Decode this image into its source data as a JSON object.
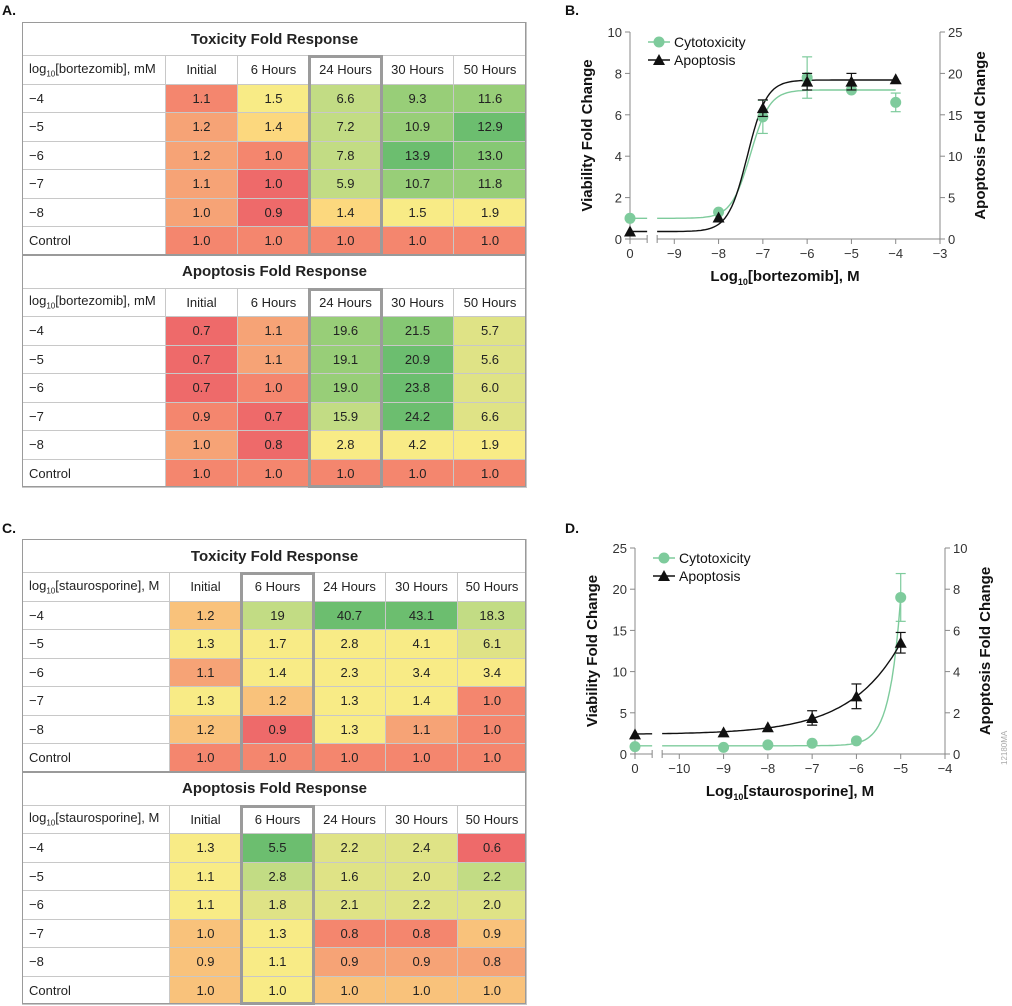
{
  "cell_colors": {
    "R": "#ee6a6a",
    "S": "#f4866e",
    "O": "#f6a376",
    "L": "#f9c27b",
    "YO": "#fcd87e",
    "Y": "#f8eb86",
    "YG": "#dfe386",
    "LG": "#c2dc84",
    "G": "#98ce78",
    "MG": "#86c874",
    "DG": "#6cbe6f"
  },
  "panel_a": {
    "label": "A.",
    "highlight_column": "24 Hours",
    "tables": [
      {
        "title": "Toxicity Fold Response",
        "header": {
          "prefix": "log",
          "sub": "10",
          "rest": "[bortezomib], mM",
          "columns": [
            "Initial",
            "6 Hours",
            "24 Hours",
            "30 Hours",
            "50 Hours"
          ]
        },
        "rows": [
          {
            "label": "−4",
            "cells": [
              {
                "v": "1.1",
                "c": "S"
              },
              {
                "v": "1.5",
                "c": "Y"
              },
              {
                "v": "6.6",
                "c": "LG"
              },
              {
                "v": "9.3",
                "c": "G"
              },
              {
                "v": "11.6",
                "c": "G"
              }
            ]
          },
          {
            "label": "−5",
            "cells": [
              {
                "v": "1.2",
                "c": "O"
              },
              {
                "v": "1.4",
                "c": "YO"
              },
              {
                "v": "7.2",
                "c": "LG"
              },
              {
                "v": "10.9",
                "c": "G"
              },
              {
                "v": "12.9",
                "c": "DG"
              }
            ]
          },
          {
            "label": "−6",
            "cells": [
              {
                "v": "1.2",
                "c": "O"
              },
              {
                "v": "1.0",
                "c": "S"
              },
              {
                "v": "7.8",
                "c": "LG"
              },
              {
                "v": "13.9",
                "c": "DG"
              },
              {
                "v": "13.0",
                "c": "MG"
              }
            ]
          },
          {
            "label": "−7",
            "cells": [
              {
                "v": "1.1",
                "c": "O"
              },
              {
                "v": "1.0",
                "c": "R"
              },
              {
                "v": "5.9",
                "c": "LG"
              },
              {
                "v": "10.7",
                "c": "G"
              },
              {
                "v": "11.8",
                "c": "G"
              }
            ]
          },
          {
            "label": "−8",
            "cells": [
              {
                "v": "1.0",
                "c": "O"
              },
              {
                "v": "0.9",
                "c": "R"
              },
              {
                "v": "1.4",
                "c": "YO"
              },
              {
                "v": "1.5",
                "c": "Y"
              },
              {
                "v": "1.9",
                "c": "Y"
              }
            ]
          },
          {
            "label": "Control",
            "cells": [
              {
                "v": "1.0",
                "c": "S"
              },
              {
                "v": "1.0",
                "c": "S"
              },
              {
                "v": "1.0",
                "c": "S"
              },
              {
                "v": "1.0",
                "c": "S"
              },
              {
                "v": "1.0",
                "c": "S"
              }
            ]
          }
        ]
      },
      {
        "title": "Apoptosis Fold Response",
        "header": {
          "prefix": "log",
          "sub": "10",
          "rest": "[bortezomib], mM",
          "columns": [
            "Initial",
            "6 Hours",
            "24 Hours",
            "30 Hours",
            "50 Hours"
          ]
        },
        "rows": [
          {
            "label": "−4",
            "cells": [
              {
                "v": "0.7",
                "c": "R"
              },
              {
                "v": "1.1",
                "c": "O"
              },
              {
                "v": "19.6",
                "c": "G"
              },
              {
                "v": "21.5",
                "c": "MG"
              },
              {
                "v": "5.7",
                "c": "YG"
              }
            ]
          },
          {
            "label": "−5",
            "cells": [
              {
                "v": "0.7",
                "c": "R"
              },
              {
                "v": "1.1",
                "c": "O"
              },
              {
                "v": "19.1",
                "c": "G"
              },
              {
                "v": "20.9",
                "c": "DG"
              },
              {
                "v": "5.6",
                "c": "YG"
              }
            ]
          },
          {
            "label": "−6",
            "cells": [
              {
                "v": "0.7",
                "c": "R"
              },
              {
                "v": "1.0",
                "c": "S"
              },
              {
                "v": "19.0",
                "c": "G"
              },
              {
                "v": "23.8",
                "c": "DG"
              },
              {
                "v": "6.0",
                "c": "YG"
              }
            ]
          },
          {
            "label": "−7",
            "cells": [
              {
                "v": "0.9",
                "c": "S"
              },
              {
                "v": "0.7",
                "c": "R"
              },
              {
                "v": "15.9",
                "c": "LG"
              },
              {
                "v": "24.2",
                "c": "DG"
              },
              {
                "v": "6.6",
                "c": "YG"
              }
            ]
          },
          {
            "label": "−8",
            "cells": [
              {
                "v": "1.0",
                "c": "O"
              },
              {
                "v": "0.8",
                "c": "R"
              },
              {
                "v": "2.8",
                "c": "Y"
              },
              {
                "v": "4.2",
                "c": "Y"
              },
              {
                "v": "1.9",
                "c": "Y"
              }
            ]
          },
          {
            "label": "Control",
            "cells": [
              {
                "v": "1.0",
                "c": "S"
              },
              {
                "v": "1.0",
                "c": "S"
              },
              {
                "v": "1.0",
                "c": "S"
              },
              {
                "v": "1.0",
                "c": "S"
              },
              {
                "v": "1.0",
                "c": "S"
              }
            ]
          }
        ]
      }
    ]
  },
  "panel_c": {
    "label": "C.",
    "highlight_column": "6 Hours",
    "tables": [
      {
        "title": "Toxicity Fold Response",
        "header": {
          "prefix": "log",
          "sub": "10",
          "rest": "[staurosporine], M",
          "columns": [
            "Initial",
            "6 Hours",
            "24 Hours",
            "30 Hours",
            "50 Hours"
          ]
        },
        "rows": [
          {
            "label": "−4",
            "cells": [
              {
                "v": "1.2",
                "c": "L"
              },
              {
                "v": "19",
                "c": "LG"
              },
              {
                "v": "40.7",
                "c": "DG"
              },
              {
                "v": "43.1",
                "c": "DG"
              },
              {
                "v": "18.3",
                "c": "LG"
              }
            ]
          },
          {
            "label": "−5",
            "cells": [
              {
                "v": "1.3",
                "c": "Y"
              },
              {
                "v": "1.7",
                "c": "Y"
              },
              {
                "v": "2.8",
                "c": "Y"
              },
              {
                "v": "4.1",
                "c": "Y"
              },
              {
                "v": "6.1",
                "c": "YG"
              }
            ]
          },
          {
            "label": "−6",
            "cells": [
              {
                "v": "1.1",
                "c": "O"
              },
              {
                "v": "1.4",
                "c": "Y"
              },
              {
                "v": "2.3",
                "c": "Y"
              },
              {
                "v": "3.4",
                "c": "Y"
              },
              {
                "v": "3.4",
                "c": "Y"
              }
            ]
          },
          {
            "label": "−7",
            "cells": [
              {
                "v": "1.3",
                "c": "Y"
              },
              {
                "v": "1.2",
                "c": "L"
              },
              {
                "v": "1.3",
                "c": "Y"
              },
              {
                "v": "1.4",
                "c": "Y"
              },
              {
                "v": "1.0",
                "c": "S"
              }
            ]
          },
          {
            "label": "−8",
            "cells": [
              {
                "v": "1.2",
                "c": "L"
              },
              {
                "v": "0.9",
                "c": "R"
              },
              {
                "v": "1.3",
                "c": "Y"
              },
              {
                "v": "1.1",
                "c": "O"
              },
              {
                "v": "1.0",
                "c": "S"
              }
            ]
          },
          {
            "label": "Control",
            "cells": [
              {
                "v": "1.0",
                "c": "S"
              },
              {
                "v": "1.0",
                "c": "S"
              },
              {
                "v": "1.0",
                "c": "S"
              },
              {
                "v": "1.0",
                "c": "S"
              },
              {
                "v": "1.0",
                "c": "S"
              }
            ]
          }
        ]
      },
      {
        "title": "Apoptosis Fold Response",
        "header": {
          "prefix": "log",
          "sub": "10",
          "rest": "[staurosporine], M",
          "columns": [
            "Initial",
            "6 Hours",
            "24 Hours",
            "30 Hours",
            "50 Hours"
          ]
        },
        "rows": [
          {
            "label": "−4",
            "cells": [
              {
                "v": "1.3",
                "c": "Y"
              },
              {
                "v": "5.5",
                "c": "DG"
              },
              {
                "v": "2.2",
                "c": "YG"
              },
              {
                "v": "2.4",
                "c": "YG"
              },
              {
                "v": "0.6",
                "c": "R"
              }
            ]
          },
          {
            "label": "−5",
            "cells": [
              {
                "v": "1.1",
                "c": "Y"
              },
              {
                "v": "2.8",
                "c": "LG"
              },
              {
                "v": "1.6",
                "c": "YG"
              },
              {
                "v": "2.0",
                "c": "YG"
              },
              {
                "v": "2.2",
                "c": "LG"
              }
            ]
          },
          {
            "label": "−6",
            "cells": [
              {
                "v": "1.1",
                "c": "Y"
              },
              {
                "v": "1.8",
                "c": "YG"
              },
              {
                "v": "2.1",
                "c": "YG"
              },
              {
                "v": "2.2",
                "c": "YG"
              },
              {
                "v": "2.0",
                "c": "YG"
              }
            ]
          },
          {
            "label": "−7",
            "cells": [
              {
                "v": "1.0",
                "c": "L"
              },
              {
                "v": "1.3",
                "c": "Y"
              },
              {
                "v": "0.8",
                "c": "S"
              },
              {
                "v": "0.8",
                "c": "S"
              },
              {
                "v": "0.9",
                "c": "L"
              }
            ]
          },
          {
            "label": "−8",
            "cells": [
              {
                "v": "0.9",
                "c": "L"
              },
              {
                "v": "1.1",
                "c": "Y"
              },
              {
                "v": "0.9",
                "c": "O"
              },
              {
                "v": "0.9",
                "c": "O"
              },
              {
                "v": "0.8",
                "c": "O"
              }
            ]
          },
          {
            "label": "Control",
            "cells": [
              {
                "v": "1.0",
                "c": "L"
              },
              {
                "v": "1.0",
                "c": "Y"
              },
              {
                "v": "1.0",
                "c": "L"
              },
              {
                "v": "1.0",
                "c": "L"
              },
              {
                "v": "1.0",
                "c": "L"
              }
            ]
          }
        ]
      }
    ]
  },
  "chart_data": [
    {
      "panel_label": "B.",
      "type": "line",
      "xlabel_prefix": "Log",
      "xlabel_sub": "10",
      "xlabel_rest": "[bortezomib], M",
      "ylabel": "Viability Fold Change",
      "y2label": "Apoptosis Fold Change",
      "x_ticks": [
        "0",
        "−9",
        "−8",
        "−7",
        "−6",
        "−5",
        "−4",
        "−3"
      ],
      "x_tick_values": [
        0,
        -9,
        -8,
        -7,
        -6,
        -5,
        -4,
        -3
      ],
      "x_axis_break": true,
      "ylim": [
        0,
        10
      ],
      "y_ticks": [
        "0",
        "2",
        "4",
        "6",
        "8",
        "10"
      ],
      "y2lim": [
        0,
        25
      ],
      "y2_ticks": [
        "0",
        "5",
        "10",
        "15",
        "20",
        "25"
      ],
      "legend_placement": "top-left",
      "series": [
        {
          "name": "Cytotoxicity",
          "axis": "left",
          "marker": "circle",
          "color": "#7ecb9c",
          "x": [
            0,
            -8,
            -7,
            -6,
            -5,
            -4
          ],
          "y": [
            1.0,
            1.3,
            5.9,
            7.8,
            7.2,
            6.6
          ],
          "error": [
            0,
            0,
            0.8,
            1.0,
            0,
            0.45
          ]
        },
        {
          "name": "Apoptosis",
          "axis": "right",
          "marker": "triangle",
          "color": "#111111",
          "x": [
            0,
            -8,
            -7,
            -6,
            -5,
            -4
          ],
          "y": [
            0.9,
            2.6,
            15.8,
            19.0,
            19.0,
            19.3
          ],
          "error": [
            0,
            0,
            1.0,
            1.0,
            1.0,
            0
          ]
        }
      ]
    },
    {
      "panel_label": "D.",
      "type": "line",
      "xlabel_prefix": "Log",
      "xlabel_sub": "10",
      "xlabel_rest": "[staurosporine], M",
      "ylabel": "Viability Fold Change",
      "y2label": "Apoptosis Fold Change",
      "x_ticks": [
        "0",
        "−10",
        "−9",
        "−8",
        "−7",
        "−6",
        "−5",
        "−4"
      ],
      "x_tick_values": [
        0,
        -10,
        -9,
        -8,
        -7,
        -6,
        -5,
        -4
      ],
      "x_axis_break": true,
      "ylim": [
        0,
        25
      ],
      "y_ticks": [
        "0",
        "5",
        "10",
        "15",
        "20",
        "25"
      ],
      "y2lim": [
        0,
        10
      ],
      "y2_ticks": [
        "0",
        "2",
        "4",
        "6",
        "8",
        "10"
      ],
      "legend_placement": "top-left",
      "series": [
        {
          "name": "Cytotoxicity",
          "axis": "left",
          "marker": "circle",
          "color": "#7ecb9c",
          "x": [
            0,
            -9,
            -8,
            -7,
            -6,
            -5
          ],
          "y": [
            0.9,
            0.8,
            1.1,
            1.3,
            1.6,
            19.0
          ],
          "error": [
            0,
            0,
            0,
            0,
            0,
            2.9
          ]
        },
        {
          "name": "Apoptosis",
          "axis": "right",
          "marker": "triangle",
          "color": "#111111",
          "x": [
            0,
            -9,
            -8,
            -7,
            -6,
            -5
          ],
          "y": [
            0.95,
            1.05,
            1.3,
            1.75,
            2.8,
            5.4
          ],
          "error": [
            0,
            0,
            0,
            0.35,
            0.6,
            0.5
          ]
        }
      ]
    }
  ],
  "figure_code": "12180MA"
}
